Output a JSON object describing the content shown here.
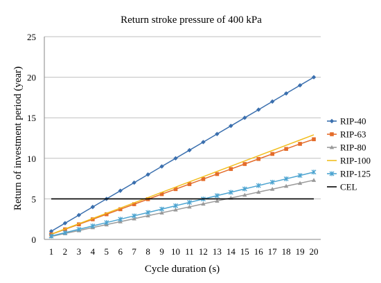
{
  "chart_data": {
    "type": "line",
    "title": "Return stroke pressure of 400 kPa",
    "xlabel": "Cycle duration (s)",
    "ylabel": "Return of investment period (year)",
    "x": [
      1,
      2,
      3,
      4,
      5,
      6,
      7,
      8,
      9,
      10,
      11,
      12,
      13,
      14,
      15,
      16,
      17,
      18,
      19,
      20
    ],
    "xlim": [
      1,
      20
    ],
    "ylim": [
      0,
      25
    ],
    "yticks": [
      0,
      5,
      10,
      15,
      20,
      25
    ],
    "grid": "horizontal",
    "legend_position": "right",
    "series": [
      {
        "name": "RIP-40",
        "color": "#3A6FAE",
        "marker": "diamond",
        "values": [
          1,
          2,
          3,
          4,
          5,
          6,
          7,
          8,
          9,
          10,
          11,
          12,
          13,
          14,
          15,
          16,
          17,
          18,
          19,
          20
        ]
      },
      {
        "name": "RIP-63",
        "color": "#E46C2A",
        "marker": "square",
        "values": [
          0.62,
          1.24,
          1.86,
          2.48,
          3.1,
          3.72,
          4.34,
          4.96,
          5.58,
          6.2,
          6.82,
          7.44,
          8.06,
          8.68,
          9.3,
          9.92,
          10.54,
          11.16,
          11.78,
          12.35
        ]
      },
      {
        "name": "RIP-80",
        "color": "#9A9A9A",
        "marker": "triangle",
        "values": [
          0.36,
          0.73,
          1.09,
          1.46,
          1.82,
          2.19,
          2.55,
          2.92,
          3.28,
          3.65,
          4.01,
          4.38,
          4.74,
          5.11,
          5.47,
          5.84,
          6.2,
          6.57,
          6.93,
          7.3
        ]
      },
      {
        "name": "RIP-100",
        "color": "#F2BE1E",
        "marker": "none",
        "values": [
          0.645,
          1.29,
          1.935,
          2.58,
          3.225,
          3.87,
          4.515,
          5.16,
          5.805,
          6.45,
          7.095,
          7.74,
          8.385,
          9.03,
          9.675,
          10.32,
          10.965,
          11.61,
          12.255,
          12.9
        ]
      },
      {
        "name": "RIP-125",
        "color": "#4BA3D0",
        "marker": "star",
        "values": [
          0.415,
          0.83,
          1.245,
          1.66,
          2.075,
          2.49,
          2.905,
          3.32,
          3.735,
          4.15,
          4.565,
          4.98,
          5.395,
          5.81,
          6.225,
          6.64,
          7.055,
          7.47,
          7.885,
          8.3
        ]
      },
      {
        "name": "CEL",
        "color": "#000000",
        "marker": "none",
        "values": [
          5,
          5,
          5,
          5,
          5,
          5,
          5,
          5,
          5,
          5,
          5,
          5,
          5,
          5,
          5,
          5,
          5,
          5,
          5,
          5
        ]
      }
    ]
  }
}
